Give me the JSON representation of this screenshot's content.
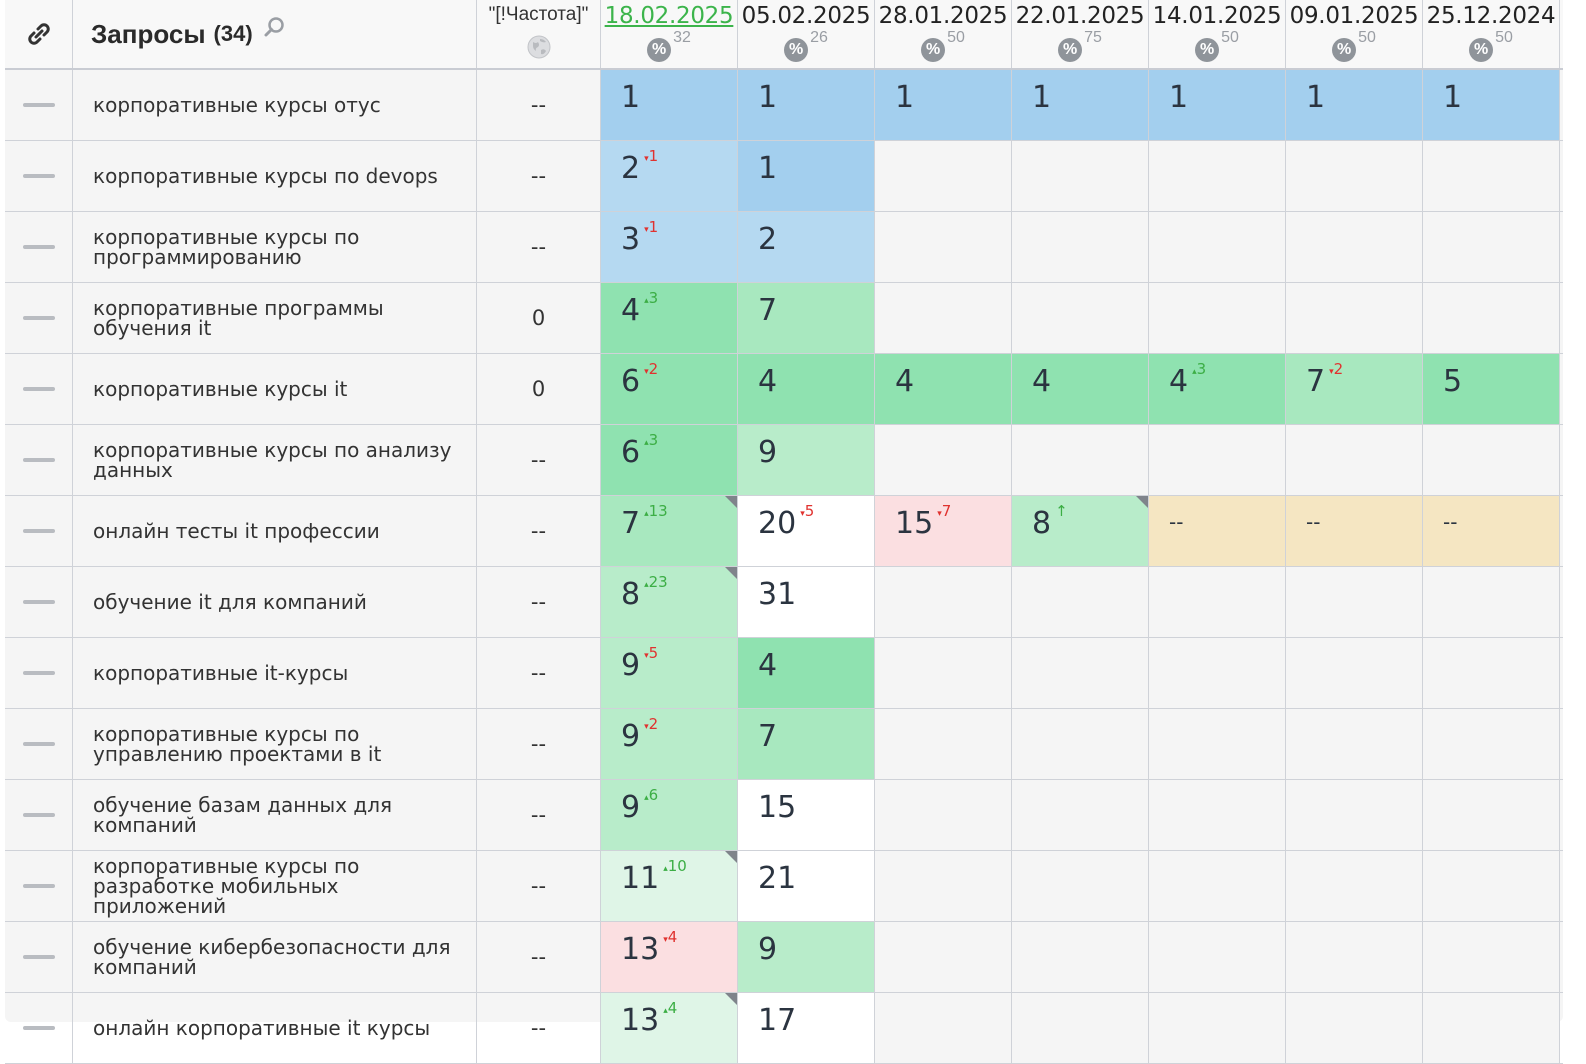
{
  "header": {
    "title": "Запросы",
    "count": "(34)",
    "freq_label": "\"[!Частота]\"",
    "icons": {
      "link": "link-icon",
      "search": "search-icon",
      "globe": "globe-icon",
      "percent": "percent-icon"
    }
  },
  "dates": [
    {
      "label": "18.02.2025",
      "pct": "32",
      "current": true
    },
    {
      "label": "05.02.2025",
      "pct": "26",
      "current": false
    },
    {
      "label": "28.01.2025",
      "pct": "50",
      "current": false
    },
    {
      "label": "22.01.2025",
      "pct": "75",
      "current": false
    },
    {
      "label": "14.01.2025",
      "pct": "50",
      "current": false
    },
    {
      "label": "09.01.2025",
      "pct": "50",
      "current": false
    },
    {
      "label": "25.12.2024",
      "pct": "50",
      "current": false
    }
  ],
  "colors": {
    "blue_dark": "#a3cfee",
    "blue_light": "#b5d9f1",
    "green_dark": "#8fe2b0",
    "green_mid": "#a8e8bf",
    "green_light": "#b8ecca",
    "green_pale": "#dff5e7",
    "white": "#ffffff",
    "pink": "#fbdfe1",
    "tan": "#f5e6c2",
    "empty": "#f5f5f5"
  },
  "rows": [
    {
      "query": "корпоративные курсы отус",
      "freq": "--",
      "cells": [
        {
          "v": "1",
          "c": "blue_dark"
        },
        {
          "v": "1",
          "c": "blue_dark"
        },
        {
          "v": "1",
          "c": "blue_dark"
        },
        {
          "v": "1",
          "c": "blue_dark"
        },
        {
          "v": "1",
          "c": "blue_dark"
        },
        {
          "v": "1",
          "c": "blue_dark"
        },
        {
          "v": "1",
          "c": "blue_dark"
        }
      ]
    },
    {
      "query": "корпоративные курсы по devops",
      "freq": "--",
      "cells": [
        {
          "v": "2",
          "d": "1",
          "dir": "down",
          "c": "blue_light"
        },
        {
          "v": "1",
          "c": "blue_dark"
        }
      ]
    },
    {
      "query": "корпоративные курсы по программированию",
      "freq": "--",
      "cells": [
        {
          "v": "3",
          "d": "1",
          "dir": "down",
          "c": "blue_light"
        },
        {
          "v": "2",
          "c": "blue_light"
        }
      ]
    },
    {
      "query": "корпоративные программы обучения it",
      "freq": "0",
      "cells": [
        {
          "v": "4",
          "d": "3",
          "dir": "up",
          "c": "green_dark"
        },
        {
          "v": "7",
          "c": "green_mid"
        }
      ]
    },
    {
      "query": "корпоративные курсы it",
      "freq": "0",
      "cells": [
        {
          "v": "6",
          "d": "2",
          "dir": "down",
          "c": "green_dark"
        },
        {
          "v": "4",
          "c": "green_dark"
        },
        {
          "v": "4",
          "c": "green_dark"
        },
        {
          "v": "4",
          "c": "green_dark"
        },
        {
          "v": "4",
          "d": "3",
          "dir": "up",
          "c": "green_dark"
        },
        {
          "v": "7",
          "d": "2",
          "dir": "down",
          "c": "green_mid"
        },
        {
          "v": "5",
          "c": "green_dark"
        }
      ]
    },
    {
      "query": "корпоративные курсы по анализу данных",
      "freq": "--",
      "cells": [
        {
          "v": "6",
          "d": "3",
          "dir": "up",
          "c": "green_dark"
        },
        {
          "v": "9",
          "c": "green_light"
        }
      ]
    },
    {
      "query": "онлайн тесты it профессии",
      "freq": "--",
      "cells": [
        {
          "v": "7",
          "d": "13",
          "dir": "up",
          "c": "green_mid",
          "corner": true
        },
        {
          "v": "20",
          "d": "5",
          "dir": "down",
          "c": "white"
        },
        {
          "v": "15",
          "d": "7",
          "dir": "down",
          "c": "pink"
        },
        {
          "v": "8",
          "d": "↑",
          "dir": "up",
          "c": "green_light",
          "corner": true
        },
        {
          "v": "--",
          "c": "tan"
        },
        {
          "v": "--",
          "c": "tan"
        },
        {
          "v": "--",
          "c": "tan"
        }
      ]
    },
    {
      "query": "обучение it для компаний",
      "freq": "--",
      "cells": [
        {
          "v": "8",
          "d": "23",
          "dir": "up",
          "c": "green_light",
          "corner": true
        },
        {
          "v": "31",
          "c": "white"
        }
      ]
    },
    {
      "query": "корпоративные it-курсы",
      "freq": "--",
      "cells": [
        {
          "v": "9",
          "d": "5",
          "dir": "down",
          "c": "green_light"
        },
        {
          "v": "4",
          "c": "green_dark"
        }
      ]
    },
    {
      "query": "корпоративные курсы по управлению проектами в it",
      "freq": "--",
      "cells": [
        {
          "v": "9",
          "d": "2",
          "dir": "down",
          "c": "green_light"
        },
        {
          "v": "7",
          "c": "green_mid"
        }
      ]
    },
    {
      "query": "обучение базам данных для компаний",
      "freq": "--",
      "cells": [
        {
          "v": "9",
          "d": "6",
          "dir": "up",
          "c": "green_light"
        },
        {
          "v": "15",
          "c": "white"
        }
      ]
    },
    {
      "query": "корпоративные курсы по разработке мобильных приложений",
      "freq": "--",
      "cells": [
        {
          "v": "11",
          "d": "10",
          "dir": "up",
          "c": "green_pale",
          "corner": true
        },
        {
          "v": "21",
          "c": "white"
        }
      ]
    },
    {
      "query": "обучение кибербезопасности для компаний",
      "freq": "--",
      "cells": [
        {
          "v": "13",
          "d": "4",
          "dir": "down",
          "c": "pink"
        },
        {
          "v": "9",
          "c": "green_light"
        }
      ]
    },
    {
      "query": "онлайн корпоративные it курсы",
      "freq": "--",
      "cells": [
        {
          "v": "13",
          "d": "4",
          "dir": "up",
          "c": "green_pale",
          "corner": true
        },
        {
          "v": "17",
          "c": "white"
        }
      ]
    }
  ]
}
